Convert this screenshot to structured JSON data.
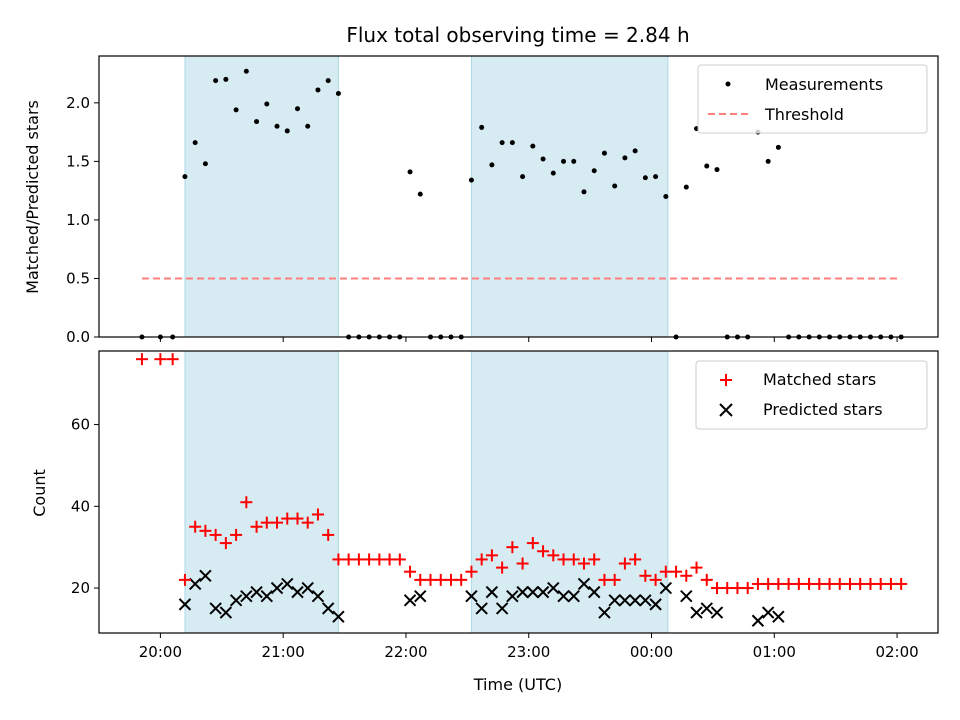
{
  "chart_data": [
    {
      "type": "scatter",
      "title": "Flux total observing time = 2.84 h",
      "xlabel": "",
      "ylabel": "Matched/Predicted stars",
      "ylim": [
        0,
        2.4
      ],
      "yticks": [
        "0.0",
        "0.5",
        "1.0",
        "1.5",
        "2.0"
      ],
      "ytick_values": [
        0,
        0.5,
        1.0,
        1.5,
        2.0
      ],
      "xlim": [
        "19:30",
        "02:20"
      ],
      "shaded_intervals": [
        [
          "20:12",
          "21:27"
        ],
        [
          "22:32",
          "00:08"
        ]
      ],
      "legend": {
        "position": "top-right",
        "entries": [
          "Measurements",
          "Threshold"
        ]
      },
      "series": [
        {
          "name": "Measurements",
          "marker": "dot",
          "color": "#000000",
          "points": [
            [
              "19:51",
              0
            ],
            [
              "20:00",
              0
            ],
            [
              "20:06",
              0
            ],
            [
              "20:12",
              1.37
            ],
            [
              "20:17",
              1.66
            ],
            [
              "20:22",
              1.48
            ],
            [
              "20:27",
              2.19
            ],
            [
              "20:32",
              2.2
            ],
            [
              "20:37",
              1.94
            ],
            [
              "20:42",
              2.27
            ],
            [
              "20:47",
              1.84
            ],
            [
              "20:52",
              1.99
            ],
            [
              "20:57",
              1.8
            ],
            [
              "21:02",
              1.76
            ],
            [
              "21:07",
              1.95
            ],
            [
              "21:12",
              1.8
            ],
            [
              "21:17",
              2.11
            ],
            [
              "21:22",
              2.19
            ],
            [
              "21:27",
              2.08
            ],
            [
              "21:32",
              0
            ],
            [
              "21:37",
              0
            ],
            [
              "21:42",
              0
            ],
            [
              "21:47",
              0
            ],
            [
              "21:52",
              0
            ],
            [
              "21:57",
              0
            ],
            [
              "22:02",
              1.41
            ],
            [
              "22:07",
              1.22
            ],
            [
              "22:12",
              0
            ],
            [
              "22:17",
              0
            ],
            [
              "22:22",
              0
            ],
            [
              "22:27",
              0
            ],
            [
              "22:32",
              1.34
            ],
            [
              "22:37",
              1.79
            ],
            [
              "22:42",
              1.47
            ],
            [
              "22:47",
              1.66
            ],
            [
              "22:52",
              1.66
            ],
            [
              "22:57",
              1.37
            ],
            [
              "23:02",
              1.63
            ],
            [
              "23:07",
              1.52
            ],
            [
              "23:12",
              1.4
            ],
            [
              "23:17",
              1.5
            ],
            [
              "23:22",
              1.5
            ],
            [
              "23:27",
              1.24
            ],
            [
              "23:32",
              1.42
            ],
            [
              "23:37",
              1.57
            ],
            [
              "23:42",
              1.29
            ],
            [
              "23:47",
              1.53
            ],
            [
              "23:52",
              1.59
            ],
            [
              "23:57",
              1.36
            ],
            [
              "00:02",
              1.37
            ],
            [
              "00:07",
              1.2
            ],
            [
              "00:12",
              0
            ],
            [
              "00:17",
              1.28
            ],
            [
              "00:22",
              1.78
            ],
            [
              "00:27",
              1.46
            ],
            [
              "00:32",
              1.43
            ],
            [
              "00:37",
              0
            ],
            [
              "00:42",
              0
            ],
            [
              "00:47",
              0
            ],
            [
              "00:52",
              1.75
            ],
            [
              "00:57",
              1.5
            ],
            [
              "01:02",
              1.62
            ],
            [
              "01:07",
              0
            ],
            [
              "01:12",
              0
            ],
            [
              "01:17",
              0
            ],
            [
              "01:22",
              0
            ],
            [
              "01:27",
              0
            ],
            [
              "01:32",
              0
            ],
            [
              "01:37",
              0
            ],
            [
              "01:42",
              0
            ],
            [
              "01:47",
              0
            ],
            [
              "01:52",
              0
            ],
            [
              "01:57",
              0
            ],
            [
              "02:02",
              0
            ]
          ]
        },
        {
          "name": "Threshold",
          "marker": "dashed-line",
          "color": "#ff7f7f",
          "points": [
            [
              "19:51",
              0.5
            ],
            [
              "02:02",
              0.5
            ]
          ]
        }
      ]
    },
    {
      "type": "scatter",
      "title": "",
      "xlabel": "Time (UTC)",
      "ylabel": "Count",
      "ylim": [
        9,
        78
      ],
      "yticks": [
        "20",
        "40",
        "60"
      ],
      "ytick_values": [
        20,
        40,
        60
      ],
      "xlim": [
        "19:30",
        "02:20"
      ],
      "xticks": [
        "20:00",
        "21:00",
        "22:00",
        "23:00",
        "00:00",
        "01:00",
        "02:00"
      ],
      "xtick_values": [
        "20:00",
        "21:00",
        "22:00",
        "23:00",
        "00:00",
        "01:00",
        "02:00"
      ],
      "shaded_intervals": [
        [
          "20:12",
          "21:27"
        ],
        [
          "22:32",
          "00:08"
        ]
      ],
      "legend": {
        "position": "top-right",
        "entries": [
          "Matched stars",
          "Predicted stars"
        ]
      },
      "series": [
        {
          "name": "Matched stars",
          "marker": "plus",
          "color": "#ff0000",
          "points": [
            [
              "19:51",
              76
            ],
            [
              "20:00",
              76
            ],
            [
              "20:06",
              76
            ],
            [
              "20:12",
              22
            ],
            [
              "20:17",
              35
            ],
            [
              "20:22",
              34
            ],
            [
              "20:27",
              33
            ],
            [
              "20:32",
              31
            ],
            [
              "20:37",
              33
            ],
            [
              "20:42",
              41
            ],
            [
              "20:47",
              35
            ],
            [
              "20:52",
              36
            ],
            [
              "20:57",
              36
            ],
            [
              "21:02",
              37
            ],
            [
              "21:07",
              37
            ],
            [
              "21:12",
              36
            ],
            [
              "21:17",
              38
            ],
            [
              "21:22",
              33
            ],
            [
              "21:27",
              27
            ],
            [
              "21:32",
              27
            ],
            [
              "21:37",
              27
            ],
            [
              "21:42",
              27
            ],
            [
              "21:47",
              27
            ],
            [
              "21:52",
              27
            ],
            [
              "21:57",
              27
            ],
            [
              "22:02",
              24
            ],
            [
              "22:07",
              22
            ],
            [
              "22:12",
              22
            ],
            [
              "22:17",
              22
            ],
            [
              "22:22",
              22
            ],
            [
              "22:27",
              22
            ],
            [
              "22:32",
              24
            ],
            [
              "22:37",
              27
            ],
            [
              "22:42",
              28
            ],
            [
              "22:47",
              25
            ],
            [
              "22:52",
              30
            ],
            [
              "22:57",
              26
            ],
            [
              "23:02",
              31
            ],
            [
              "23:07",
              29
            ],
            [
              "23:12",
              28
            ],
            [
              "23:17",
              27
            ],
            [
              "23:22",
              27
            ],
            [
              "23:27",
              26
            ],
            [
              "23:32",
              27
            ],
            [
              "23:37",
              22
            ],
            [
              "23:42",
              22
            ],
            [
              "23:47",
              26
            ],
            [
              "23:52",
              27
            ],
            [
              "23:57",
              23
            ],
            [
              "00:02",
              22
            ],
            [
              "00:07",
              24
            ],
            [
              "00:12",
              24
            ],
            [
              "00:17",
              23
            ],
            [
              "00:22",
              25
            ],
            [
              "00:27",
              22
            ],
            [
              "00:32",
              20
            ],
            [
              "00:37",
              20
            ],
            [
              "00:42",
              20
            ],
            [
              "00:47",
              20
            ],
            [
              "00:52",
              21
            ],
            [
              "00:57",
              21
            ],
            [
              "01:02",
              21
            ],
            [
              "01:07",
              21
            ],
            [
              "01:12",
              21
            ],
            [
              "01:17",
              21
            ],
            [
              "01:22",
              21
            ],
            [
              "01:27",
              21
            ],
            [
              "01:32",
              21
            ],
            [
              "01:37",
              21
            ],
            [
              "01:42",
              21
            ],
            [
              "01:47",
              21
            ],
            [
              "01:52",
              21
            ],
            [
              "01:57",
              21
            ],
            [
              "02:02",
              21
            ]
          ]
        },
        {
          "name": "Predicted stars",
          "marker": "x",
          "color": "#000000",
          "points": [
            [
              "20:12",
              16
            ],
            [
              "20:17",
              21
            ],
            [
              "20:22",
              23
            ],
            [
              "20:27",
              15
            ],
            [
              "20:32",
              14
            ],
            [
              "20:37",
              17
            ],
            [
              "20:42",
              18
            ],
            [
              "20:47",
              19
            ],
            [
              "20:52",
              18
            ],
            [
              "20:57",
              20
            ],
            [
              "21:02",
              21
            ],
            [
              "21:07",
              19
            ],
            [
              "21:12",
              20
            ],
            [
              "21:17",
              18
            ],
            [
              "21:22",
              15
            ],
            [
              "21:27",
              13
            ],
            [
              "22:02",
              17
            ],
            [
              "22:07",
              18
            ],
            [
              "22:32",
              18
            ],
            [
              "22:37",
              15
            ],
            [
              "22:42",
              19
            ],
            [
              "22:47",
              15
            ],
            [
              "22:52",
              18
            ],
            [
              "22:57",
              19
            ],
            [
              "23:02",
              19
            ],
            [
              "23:07",
              19
            ],
            [
              "23:12",
              20
            ],
            [
              "23:17",
              18
            ],
            [
              "23:22",
              18
            ],
            [
              "23:27",
              21
            ],
            [
              "23:32",
              19
            ],
            [
              "23:37",
              14
            ],
            [
              "23:42",
              17
            ],
            [
              "23:47",
              17
            ],
            [
              "23:52",
              17
            ],
            [
              "23:57",
              17
            ],
            [
              "00:02",
              16
            ],
            [
              "00:07",
              20
            ],
            [
              "00:17",
              18
            ],
            [
              "00:22",
              14
            ],
            [
              "00:27",
              15
            ],
            [
              "00:32",
              14
            ],
            [
              "00:52",
              12
            ],
            [
              "00:57",
              14
            ],
            [
              "01:02",
              13
            ]
          ]
        }
      ]
    }
  ]
}
